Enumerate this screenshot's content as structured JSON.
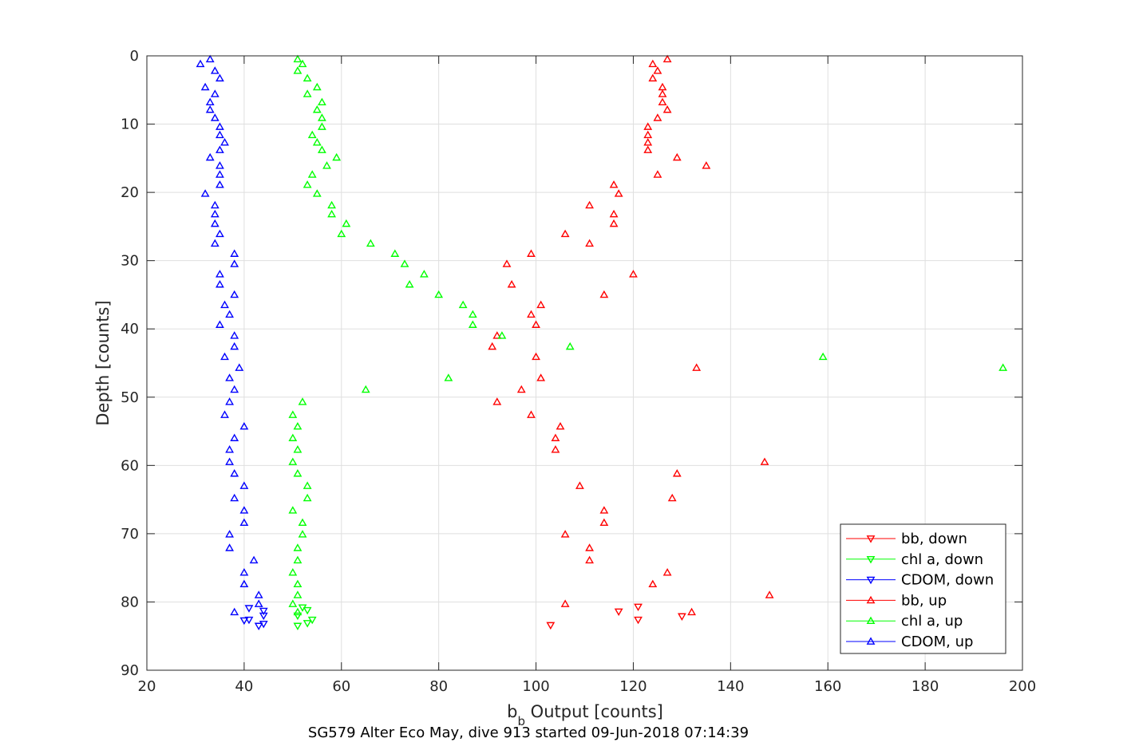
{
  "chart_data": {
    "type": "scatter",
    "title": "",
    "caption": "SG579 Alter Eco May, dive 913 started 09-Jun-2018 07:14:39",
    "xlabel": {
      "main": "b",
      "subscript": "b",
      "rest": " Output [counts]"
    },
    "ylabel": "Depth [counts]",
    "xlim": [
      20,
      200
    ],
    "ylim": [
      0,
      90
    ],
    "y_reversed": true,
    "grid": true,
    "legend_position": "bottom-right",
    "x_ticks": [
      20,
      40,
      60,
      80,
      100,
      120,
      140,
      160,
      180,
      200
    ],
    "y_ticks": [
      0,
      10,
      20,
      30,
      40,
      50,
      60,
      70,
      80,
      90
    ],
    "series": [
      {
        "name": "bb, down",
        "color": "#ff0000",
        "marker": "triangle-down",
        "points": [
          [
            121,
            80.7
          ],
          [
            117,
            81.4
          ],
          [
            121,
            82.6
          ],
          [
            130,
            82.1
          ],
          [
            103,
            83.4
          ]
        ]
      },
      {
        "name": "chl a, down",
        "color": "#00ff00",
        "marker": "triangle-down",
        "points": [
          [
            52,
            80.8
          ],
          [
            53,
            81.2
          ],
          [
            51,
            82.0
          ],
          [
            54,
            82.6
          ],
          [
            53,
            83.1
          ],
          [
            51,
            83.5
          ]
        ]
      },
      {
        "name": "CDOM, down",
        "color": "#0000ff",
        "marker": "triangle-down",
        "points": [
          [
            41,
            80.9
          ],
          [
            44,
            81.3
          ],
          [
            44,
            82.0
          ],
          [
            41,
            82.6
          ],
          [
            40,
            82.7
          ],
          [
            44,
            83.2
          ],
          [
            43,
            83.5
          ]
        ]
      },
      {
        "name": "bb, up",
        "color": "#ff0000",
        "marker": "triangle-up",
        "points": [
          [
            127,
            0.5
          ],
          [
            124,
            1.2
          ],
          [
            125,
            2.2
          ],
          [
            124,
            3.3
          ],
          [
            126,
            4.6
          ],
          [
            126,
            5.6
          ],
          [
            126,
            6.8
          ],
          [
            127,
            7.9
          ],
          [
            125,
            9.1
          ],
          [
            123,
            10.4
          ],
          [
            123,
            11.6
          ],
          [
            123,
            12.7
          ],
          [
            123,
            13.8
          ],
          [
            129,
            14.9
          ],
          [
            135,
            16.1
          ],
          [
            125,
            17.4
          ],
          [
            116,
            18.9
          ],
          [
            117,
            20.2
          ],
          [
            111,
            21.9
          ],
          [
            116,
            23.2
          ],
          [
            116,
            24.6
          ],
          [
            106,
            26.1
          ],
          [
            111,
            27.5
          ],
          [
            99,
            29.0
          ],
          [
            94,
            30.5
          ],
          [
            120,
            32.0
          ],
          [
            95,
            33.5
          ],
          [
            114,
            35.0
          ],
          [
            101,
            36.5
          ],
          [
            99,
            37.9
          ],
          [
            100,
            39.4
          ],
          [
            92,
            41.0
          ],
          [
            91,
            42.6
          ],
          [
            100,
            44.1
          ],
          [
            133,
            45.7
          ],
          [
            101,
            47.2
          ],
          [
            97,
            48.9
          ],
          [
            92,
            50.7
          ],
          [
            99,
            52.6
          ],
          [
            105,
            54.3
          ],
          [
            104,
            56.0
          ],
          [
            104,
            57.7
          ],
          [
            147,
            59.5
          ],
          [
            129,
            61.2
          ],
          [
            109,
            63.0
          ],
          [
            128,
            64.8
          ],
          [
            114,
            66.6
          ],
          [
            114,
            68.4
          ],
          [
            106,
            70.1
          ],
          [
            111,
            72.1
          ],
          [
            111,
            73.9
          ],
          [
            127,
            75.7
          ],
          [
            124,
            77.4
          ],
          [
            148,
            79.0
          ],
          [
            106,
            80.3
          ],
          [
            132,
            81.5
          ]
        ]
      },
      {
        "name": "chl a, up",
        "color": "#00ff00",
        "marker": "triangle-up",
        "points": [
          [
            51,
            0.5
          ],
          [
            52,
            1.2
          ],
          [
            51,
            2.2
          ],
          [
            53,
            3.3
          ],
          [
            55,
            4.6
          ],
          [
            53,
            5.6
          ],
          [
            56,
            6.8
          ],
          [
            55,
            7.9
          ],
          [
            56,
            9.1
          ],
          [
            56,
            10.4
          ],
          [
            54,
            11.6
          ],
          [
            55,
            12.7
          ],
          [
            56,
            13.8
          ],
          [
            59,
            14.9
          ],
          [
            57,
            16.1
          ],
          [
            54,
            17.4
          ],
          [
            53,
            18.9
          ],
          [
            55,
            20.2
          ],
          [
            58,
            21.9
          ],
          [
            58,
            23.2
          ],
          [
            61,
            24.6
          ],
          [
            60,
            26.1
          ],
          [
            66,
            27.5
          ],
          [
            71,
            29.0
          ],
          [
            73,
            30.5
          ],
          [
            77,
            32.0
          ],
          [
            74,
            33.5
          ],
          [
            80,
            35.0
          ],
          [
            85,
            36.5
          ],
          [
            87,
            37.9
          ],
          [
            87,
            39.4
          ],
          [
            93,
            41.0
          ],
          [
            107,
            42.6
          ],
          [
            159,
            44.1
          ],
          [
            196,
            45.7
          ],
          [
            82,
            47.2
          ],
          [
            65,
            48.9
          ],
          [
            52,
            50.7
          ],
          [
            50,
            52.6
          ],
          [
            51,
            54.3
          ],
          [
            50,
            56.0
          ],
          [
            51,
            57.7
          ],
          [
            50,
            59.5
          ],
          [
            51,
            61.2
          ],
          [
            53,
            63.0
          ],
          [
            53,
            64.8
          ],
          [
            50,
            66.6
          ],
          [
            52,
            68.4
          ],
          [
            52,
            70.1
          ],
          [
            51,
            72.1
          ],
          [
            51,
            73.9
          ],
          [
            50,
            75.7
          ],
          [
            51,
            77.4
          ],
          [
            51,
            79.0
          ],
          [
            50,
            80.3
          ],
          [
            51,
            81.5
          ]
        ]
      },
      {
        "name": "CDOM, up",
        "color": "#0000ff",
        "marker": "triangle-up",
        "points": [
          [
            33,
            0.5
          ],
          [
            31,
            1.2
          ],
          [
            34,
            2.2
          ],
          [
            35,
            3.3
          ],
          [
            32,
            4.6
          ],
          [
            34,
            5.6
          ],
          [
            33,
            6.8
          ],
          [
            33,
            7.9
          ],
          [
            34,
            9.1
          ],
          [
            35,
            10.4
          ],
          [
            35,
            11.6
          ],
          [
            36,
            12.7
          ],
          [
            35,
            13.8
          ],
          [
            33,
            14.9
          ],
          [
            35,
            16.1
          ],
          [
            35,
            17.4
          ],
          [
            35,
            18.9
          ],
          [
            32,
            20.2
          ],
          [
            34,
            21.9
          ],
          [
            34,
            23.2
          ],
          [
            34,
            24.6
          ],
          [
            35,
            26.1
          ],
          [
            34,
            27.5
          ],
          [
            38,
            29.0
          ],
          [
            38,
            30.5
          ],
          [
            35,
            32.0
          ],
          [
            35,
            33.5
          ],
          [
            38,
            35.0
          ],
          [
            36,
            36.5
          ],
          [
            37,
            37.9
          ],
          [
            35,
            39.4
          ],
          [
            38,
            41.0
          ],
          [
            38,
            42.6
          ],
          [
            36,
            44.1
          ],
          [
            39,
            45.7
          ],
          [
            37,
            47.2
          ],
          [
            38,
            48.9
          ],
          [
            37,
            50.7
          ],
          [
            36,
            52.6
          ],
          [
            40,
            54.3
          ],
          [
            38,
            56.0
          ],
          [
            37,
            57.7
          ],
          [
            37,
            59.5
          ],
          [
            38,
            61.2
          ],
          [
            40,
            63.0
          ],
          [
            38,
            64.8
          ],
          [
            40,
            66.6
          ],
          [
            40,
            68.4
          ],
          [
            37,
            70.1
          ],
          [
            37,
            72.1
          ],
          [
            42,
            73.9
          ],
          [
            40,
            75.7
          ],
          [
            40,
            77.4
          ],
          [
            43,
            79.0
          ],
          [
            43,
            80.3
          ],
          [
            38,
            81.5
          ]
        ]
      }
    ]
  }
}
